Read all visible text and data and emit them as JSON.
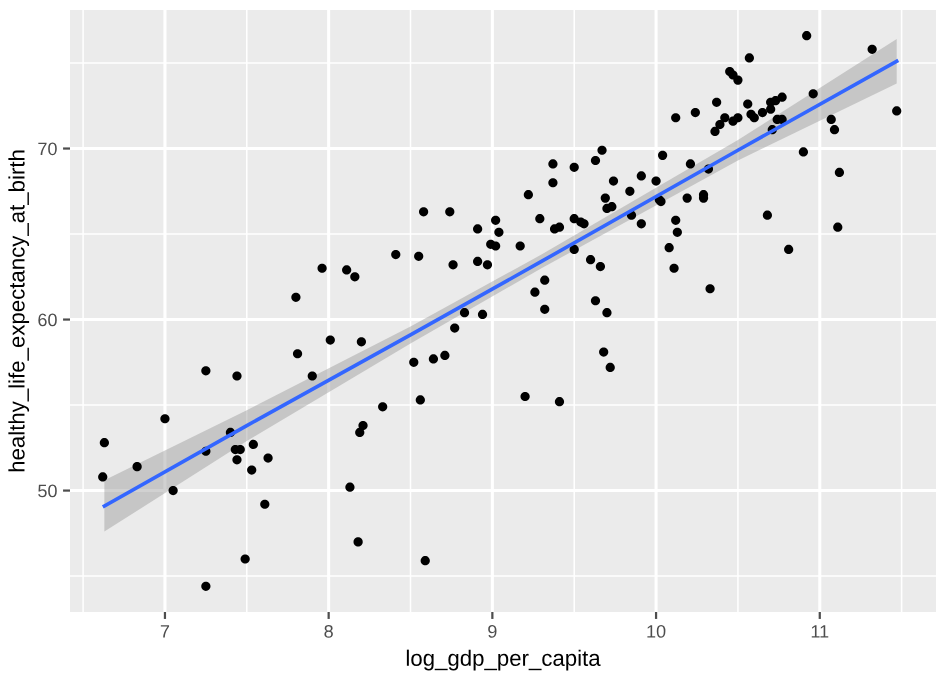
{
  "chart_data": {
    "type": "scatter",
    "xlabel": "log_gdp_per_capita",
    "ylabel": "healthy_life_expectancy_at_birth",
    "xlim": [
      6.42,
      11.71
    ],
    "ylim": [
      42.9,
      78.1
    ],
    "xticks": [
      {
        "value": 6.5,
        "label": null
      },
      7,
      {
        "value": 7.5,
        "label": null
      },
      8,
      {
        "value": 8.5,
        "label": null
      },
      9,
      {
        "value": 9.5,
        "label": null
      },
      10,
      {
        "value": 10.5,
        "label": null
      },
      11,
      {
        "value": 11.5,
        "label": null
      }
    ],
    "yticks": [
      {
        "value": 45,
        "label": null
      },
      50,
      {
        "value": 55,
        "label": null
      },
      60,
      {
        "value": 65,
        "label": null
      },
      70,
      {
        "value": 75,
        "label": null
      }
    ],
    "grid": true,
    "series": [
      {
        "color": "#000000",
        "marker": "circle",
        "x": [
          7.8,
          7.96,
          8.11,
          8.16,
          8.41,
          8.55,
          8.58,
          8.74,
          8.76,
          8.91,
          8.91,
          8.83,
          8.77,
          8.01,
          8.2,
          6.63,
          6.62,
          6.83,
          7.0,
          7.05,
          7.25,
          7.25,
          7.25,
          7.44,
          7.4,
          7.43,
          7.46,
          7.44,
          7.54,
          7.53,
          7.63,
          7.61,
          7.49,
          7.81,
          7.9,
          8.13,
          8.18,
          8.19,
          8.21,
          8.33,
          8.52,
          8.64,
          8.71,
          8.56,
          8.59,
          9.2,
          9.41,
          9.68,
          9.72,
          8.94,
          9.02,
          9.04,
          8.99,
          9.02,
          8.97,
          9.17,
          9.22,
          9.29,
          9.37,
          9.37,
          9.38,
          9.41,
          9.5,
          9.5,
          9.54,
          9.56,
          9.5,
          9.6,
          9.66,
          9.32,
          9.26,
          9.32,
          9.63,
          9.7,
          9.63,
          9.67,
          9.69,
          9.7,
          9.73,
          9.74,
          9.84,
          9.85,
          9.91,
          9.91,
          10.0,
          10.02,
          10.04,
          10.03,
          10.12,
          10.12,
          10.13,
          10.08,
          10.11,
          10.24,
          10.21,
          10.19,
          10.29,
          10.29,
          10.32,
          10.33,
          10.36,
          10.37,
          10.39,
          10.42,
          10.45,
          10.47,
          10.5,
          10.47,
          10.5,
          10.56,
          10.57,
          10.58,
          10.6,
          10.65,
          10.7,
          10.7,
          10.73,
          10.77,
          10.74,
          10.77,
          10.71,
          10.68,
          10.81,
          10.9,
          10.92,
          10.96,
          11.07,
          11.09,
          11.12,
          11.11,
          11.32,
          11.47
        ],
        "values": [
          61.3,
          63.0,
          62.9,
          62.5,
          63.8,
          63.7,
          66.3,
          66.3,
          63.2,
          65.3,
          63.4,
          60.4,
          59.5,
          58.8,
          58.7,
          52.8,
          50.8,
          51.4,
          54.2,
          50.0,
          57.0,
          52.3,
          44.4,
          56.7,
          53.4,
          52.4,
          52.4,
          51.8,
          52.7,
          51.2,
          51.9,
          49.2,
          46.0,
          58.0,
          56.7,
          50.2,
          47.0,
          53.4,
          53.8,
          54.9,
          57.5,
          57.7,
          57.9,
          55.3,
          45.9,
          55.5,
          55.2,
          58.1,
          57.2,
          60.3,
          65.8,
          65.1,
          64.4,
          64.3,
          63.2,
          64.3,
          67.3,
          65.9,
          69.1,
          68.0,
          65.3,
          65.4,
          68.9,
          65.9,
          65.7,
          65.6,
          64.1,
          63.5,
          63.1,
          62.3,
          61.6,
          60.6,
          61.1,
          60.4,
          69.3,
          69.9,
          67.1,
          66.5,
          66.6,
          68.1,
          67.5,
          66.1,
          68.4,
          65.6,
          68.1,
          67.0,
          69.6,
          66.9,
          71.8,
          65.8,
          65.1,
          64.2,
          63.0,
          72.1,
          69.1,
          67.1,
          67.3,
          67.1,
          68.8,
          61.8,
          71.0,
          72.7,
          71.4,
          71.8,
          74.5,
          74.3,
          74.0,
          71.6,
          71.8,
          72.6,
          75.3,
          72.0,
          71.8,
          72.1,
          72.7,
          72.3,
          72.8,
          73.0,
          71.7,
          71.7,
          71.1,
          66.1,
          64.1,
          69.8,
          76.6,
          73.2,
          71.7,
          71.1,
          68.6,
          65.4,
          75.8,
          72.2
        ]
      },
      {
        "type": "line",
        "marker": "none",
        "color": "#3366ff",
        "x": [
          6.63,
          7.5,
          8.5,
          9.3,
          10.5,
          11.47
        ],
        "values": [
          49.1,
          53.8,
          59.1,
          63.4,
          69.9,
          75.1
        ],
        "lower": [
          47.6,
          52.9,
          58.6,
          63.0,
          69.3,
          73.8
        ],
        "upper": [
          50.6,
          54.7,
          59.6,
          63.8,
          70.5,
          76.4
        ]
      }
    ]
  }
}
